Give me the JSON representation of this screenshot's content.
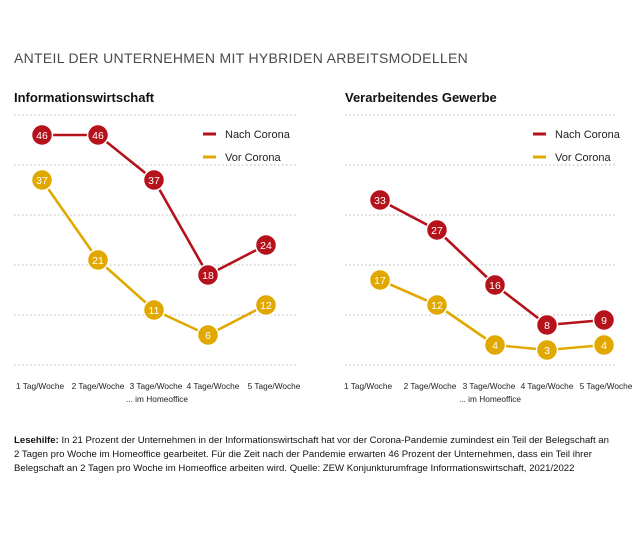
{
  "title": "ANTEIL DER UNTERNEHMEN MIT HYBRIDEN ARBEITSMODELLEN",
  "colors": {
    "nach": "#b5121b",
    "vor": "#e0a800",
    "grid": "#9a9a9a"
  },
  "xlabel": "... im Homeoffice",
  "chart_data": [
    {
      "type": "line",
      "title": "Informationswirtschaft",
      "categories": [
        "1 Tag/Woche",
        "2 Tage/Woche",
        "3 Tage/Woche",
        "4 Tage/Woche",
        "5 Tage/Woche"
      ],
      "xlabel": "... im Homeoffice",
      "ylim": [
        0,
        50
      ],
      "grid": true,
      "legend": "top-right",
      "series": [
        {
          "name": "Nach Corona",
          "color": "#b5121b",
          "values": [
            46,
            46,
            37,
            18,
            24
          ]
        },
        {
          "name": "Vor Corona",
          "color": "#e0a800",
          "values": [
            37,
            21,
            11,
            6,
            12
          ]
        }
      ]
    },
    {
      "type": "line",
      "title": "Verarbeitendes Gewerbe",
      "categories": [
        "1 Tag/Woche",
        "2 Tage/Woche",
        "3 Tage/Woche",
        "4 Tage/Woche",
        "5 Tage/Woche"
      ],
      "xlabel": "... im Homeoffice",
      "ylim": [
        0,
        50
      ],
      "grid": true,
      "legend": "top-right",
      "series": [
        {
          "name": "Nach Corona",
          "color": "#b5121b",
          "values": [
            33,
            27,
            16,
            8,
            9
          ]
        },
        {
          "name": "Vor Corona",
          "color": "#e0a800",
          "values": [
            17,
            12,
            4,
            3,
            4
          ]
        }
      ]
    }
  ],
  "note": {
    "label": "Lesehilfe:",
    "text": " In 21 Prozent der Unternehmen in der Informationswirtschaft hat vor der Corona-Pandemie zumindest ein Teil der Belegschaft an 2 Tagen pro Woche im Homeoffice gearbeitet. Für die Zeit nach der Pandemie erwarten 46 Prozent der Unternehmen, dass ein Teil ihrer Belegschaft an 2 Tagen pro Woche im Homeoffice arbeiten wird. Quelle: ZEW Konjunkturumfrage Informationswirtschaft, 2021/2022"
  }
}
